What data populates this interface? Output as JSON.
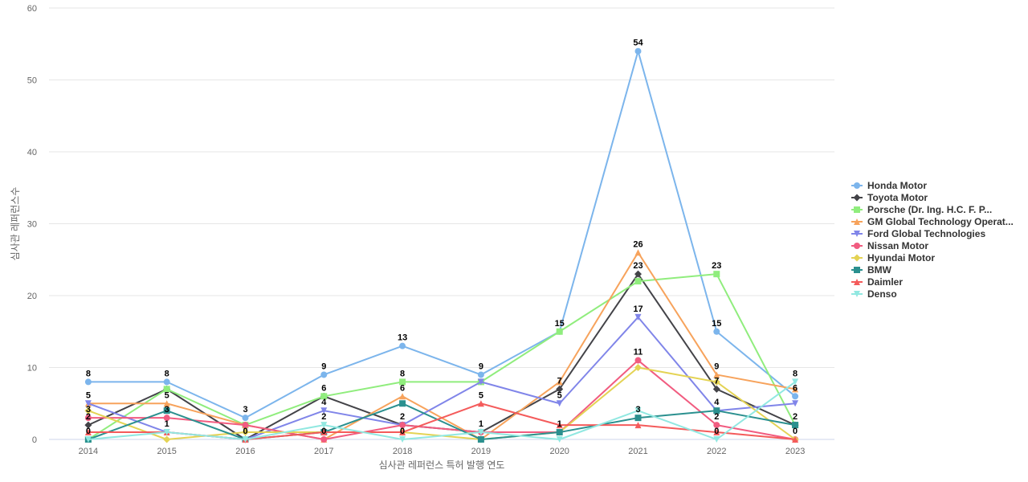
{
  "chart_data": {
    "type": "line",
    "xlabel": "심사관 레퍼런스 특허 발행 연도",
    "ylabel": "심사관 레퍼런스수",
    "categories": [
      "2014",
      "2015",
      "2016",
      "2017",
      "2018",
      "2019",
      "2020",
      "2021",
      "2022",
      "2023"
    ],
    "ylim": [
      0,
      60
    ],
    "yticks": [
      0,
      10,
      20,
      30,
      40,
      50,
      60
    ],
    "grid": true,
    "legend_position": "right",
    "series": [
      {
        "name": "Honda Motor",
        "color": "#7cb5ec",
        "marker": "circle",
        "values": [
          8,
          8,
          3,
          9,
          13,
          9,
          15,
          54,
          15,
          6
        ]
      },
      {
        "name": "Toyota Motor",
        "color": "#434348",
        "marker": "diamond",
        "values": [
          2,
          7,
          0,
          6,
          2,
          1,
          7,
          23,
          7,
          2
        ]
      },
      {
        "name": "Porsche (Dr. Ing. H.C. F. P...",
        "color": "#90ed7d",
        "marker": "square",
        "values": [
          0,
          7,
          2,
          6,
          8,
          8,
          15,
          22,
          23,
          2
        ]
      },
      {
        "name": "GM Global Technology Operat...",
        "color": "#f7a35c",
        "marker": "triangle",
        "values": [
          5,
          5,
          2,
          0,
          6,
          0,
          8,
          26,
          9,
          7
        ]
      },
      {
        "name": "Ford Global Technologies",
        "color": "#8085e9",
        "marker": "triangle-down",
        "values": [
          5,
          1,
          0,
          4,
          2,
          8,
          5,
          17,
          4,
          5
        ]
      },
      {
        "name": "Nissan Motor",
        "color": "#f15c80",
        "marker": "circle",
        "values": [
          3,
          3,
          2,
          0,
          2,
          1,
          1,
          11,
          2,
          0
        ]
      },
      {
        "name": "Hyundai Motor",
        "color": "#e4d354",
        "marker": "diamond",
        "values": [
          4,
          0,
          1,
          1,
          1,
          0,
          1,
          10,
          8,
          0
        ]
      },
      {
        "name": "BMW",
        "color": "#2b908f",
        "marker": "square",
        "values": [
          0,
          4,
          0,
          1,
          5,
          0,
          1,
          3,
          4,
          2
        ]
      },
      {
        "name": "Daimler",
        "color": "#f45b5b",
        "marker": "triangle",
        "values": [
          1,
          1,
          0,
          1,
          1,
          5,
          2,
          2,
          1,
          0
        ]
      },
      {
        "name": "Denso",
        "color": "#91e8e1",
        "marker": "triangle-down",
        "values": [
          0,
          1,
          0,
          2,
          0,
          1,
          0,
          4,
          0,
          8
        ]
      }
    ],
    "data_labels": [
      {
        "category": "2014",
        "values": [
          8,
          5,
          3,
          2,
          0
        ]
      },
      {
        "category": "2015",
        "values": [
          8,
          5,
          3,
          1
        ]
      },
      {
        "category": "2016",
        "values": [
          3,
          0
        ]
      },
      {
        "category": "2017",
        "values": [
          9,
          6,
          4,
          2,
          0
        ]
      },
      {
        "category": "2018",
        "values": [
          13,
          8,
          6,
          2,
          0
        ]
      },
      {
        "category": "2019",
        "values": [
          9,
          5,
          1
        ]
      },
      {
        "category": "2020",
        "values": [
          15,
          7,
          5,
          1
        ]
      },
      {
        "category": "2021",
        "values": [
          54,
          26,
          23,
          17,
          11,
          3
        ]
      },
      {
        "category": "2022",
        "values": [
          23,
          15,
          9,
          7,
          4,
          2,
          0
        ]
      },
      {
        "category": "2023",
        "values": [
          8,
          6,
          2,
          0
        ]
      }
    ]
  }
}
